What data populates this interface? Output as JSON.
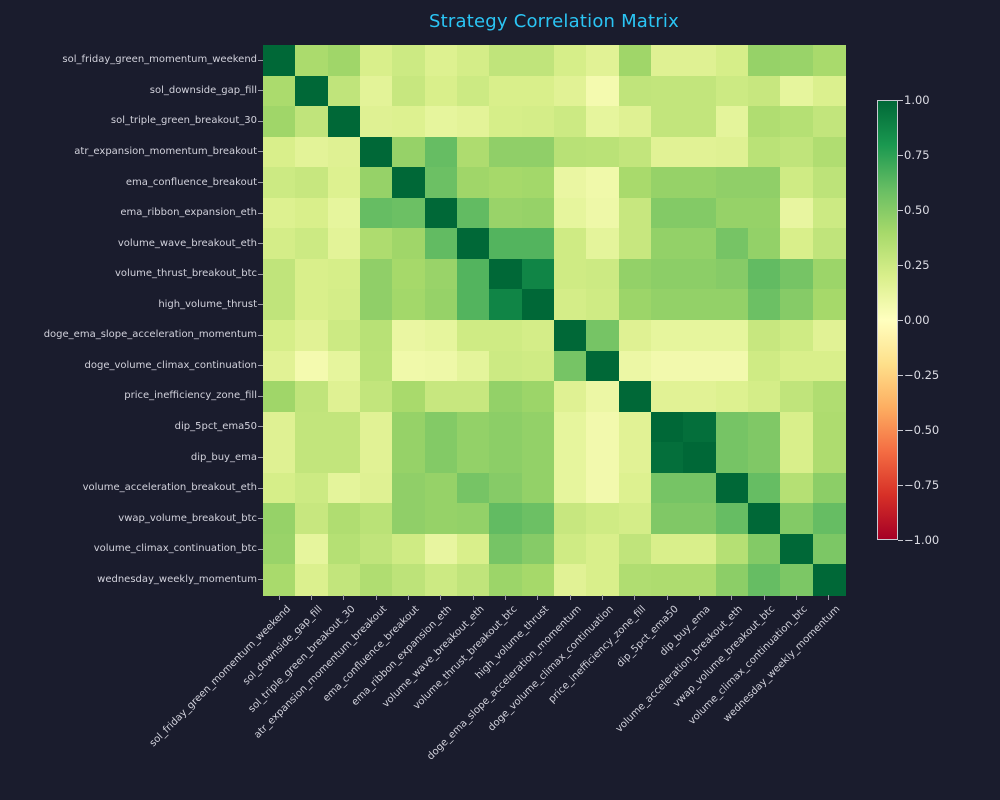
{
  "chart_data": {
    "type": "heatmap",
    "title": "Strategy Correlation Matrix",
    "labels": [
      "sol_friday_green_momentum_weekend",
      "sol_downside_gap_fill",
      "sol_triple_green_breakout_30",
      "atr_expansion_momentum_breakout",
      "ema_confluence_breakout",
      "ema_ribbon_expansion_eth",
      "volume_wave_breakout_eth",
      "volume_thrust_breakout_btc",
      "high_volume_thrust",
      "doge_ema_slope_acceleration_momentum",
      "doge_volume_climax_continuation",
      "price_inefficiency_zone_fill",
      "dip_5pct_ema50",
      "dip_buy_ema",
      "volume_acceleration_breakout_eth",
      "vwap_volume_breakout_btc",
      "volume_climax_continuation_btc",
      "wednesday_weekly_momentum"
    ],
    "matrix": [
      [
        1.0,
        0.38,
        0.42,
        0.2,
        0.25,
        0.18,
        0.22,
        0.3,
        0.3,
        0.21,
        0.16,
        0.42,
        0.17,
        0.17,
        0.21,
        0.45,
        0.44,
        0.39
      ],
      [
        0.38,
        1.0,
        0.3,
        0.15,
        0.27,
        0.2,
        0.25,
        0.2,
        0.2,
        0.16,
        0.06,
        0.3,
        0.29,
        0.29,
        0.25,
        0.27,
        0.13,
        0.19
      ],
      [
        0.42,
        0.3,
        1.0,
        0.17,
        0.18,
        0.13,
        0.15,
        0.21,
        0.22,
        0.25,
        0.13,
        0.17,
        0.29,
        0.29,
        0.14,
        0.36,
        0.34,
        0.29
      ],
      [
        0.2,
        0.15,
        0.17,
        1.0,
        0.45,
        0.6,
        0.37,
        0.47,
        0.47,
        0.33,
        0.32,
        0.29,
        0.16,
        0.16,
        0.17,
        0.32,
        0.3,
        0.36
      ],
      [
        0.25,
        0.27,
        0.18,
        0.45,
        1.0,
        0.58,
        0.42,
        0.4,
        0.41,
        0.11,
        0.08,
        0.39,
        0.45,
        0.45,
        0.47,
        0.47,
        0.24,
        0.31
      ],
      [
        0.18,
        0.2,
        0.13,
        0.6,
        0.58,
        1.0,
        0.61,
        0.44,
        0.45,
        0.13,
        0.09,
        0.27,
        0.51,
        0.51,
        0.45,
        0.45,
        0.12,
        0.25
      ],
      [
        0.22,
        0.25,
        0.15,
        0.37,
        0.42,
        0.61,
        1.0,
        0.65,
        0.65,
        0.24,
        0.14,
        0.27,
        0.46,
        0.46,
        0.55,
        0.46,
        0.2,
        0.3
      ],
      [
        0.3,
        0.2,
        0.21,
        0.47,
        0.4,
        0.44,
        0.65,
        1.0,
        0.88,
        0.24,
        0.25,
        0.46,
        0.48,
        0.48,
        0.5,
        0.61,
        0.55,
        0.43
      ],
      [
        0.3,
        0.2,
        0.22,
        0.47,
        0.41,
        0.45,
        0.65,
        0.88,
        1.0,
        0.22,
        0.24,
        0.43,
        0.46,
        0.46,
        0.46,
        0.58,
        0.5,
        0.4
      ],
      [
        0.21,
        0.16,
        0.25,
        0.33,
        0.11,
        0.13,
        0.24,
        0.24,
        0.22,
        1.0,
        0.55,
        0.17,
        0.13,
        0.13,
        0.13,
        0.27,
        0.24,
        0.16
      ],
      [
        0.16,
        0.06,
        0.13,
        0.32,
        0.08,
        0.09,
        0.14,
        0.25,
        0.24,
        0.55,
        1.0,
        0.1,
        0.07,
        0.07,
        0.07,
        0.24,
        0.2,
        0.2
      ],
      [
        0.42,
        0.3,
        0.17,
        0.29,
        0.39,
        0.27,
        0.27,
        0.46,
        0.43,
        0.17,
        0.1,
        1.0,
        0.16,
        0.16,
        0.18,
        0.22,
        0.3,
        0.36
      ],
      [
        0.17,
        0.29,
        0.29,
        0.16,
        0.45,
        0.51,
        0.46,
        0.48,
        0.46,
        0.13,
        0.07,
        0.16,
        1.0,
        0.97,
        0.55,
        0.52,
        0.2,
        0.37
      ],
      [
        0.17,
        0.29,
        0.29,
        0.16,
        0.45,
        0.51,
        0.46,
        0.48,
        0.46,
        0.13,
        0.07,
        0.16,
        0.97,
        1.0,
        0.55,
        0.52,
        0.2,
        0.37
      ],
      [
        0.21,
        0.25,
        0.14,
        0.17,
        0.47,
        0.45,
        0.55,
        0.5,
        0.46,
        0.13,
        0.07,
        0.18,
        0.55,
        0.55,
        1.0,
        0.6,
        0.34,
        0.48
      ],
      [
        0.45,
        0.27,
        0.36,
        0.32,
        0.47,
        0.45,
        0.46,
        0.61,
        0.58,
        0.27,
        0.24,
        0.22,
        0.52,
        0.52,
        0.6,
        1.0,
        0.51,
        0.6
      ],
      [
        0.44,
        0.13,
        0.34,
        0.3,
        0.24,
        0.12,
        0.2,
        0.55,
        0.5,
        0.24,
        0.2,
        0.3,
        0.2,
        0.2,
        0.34,
        0.51,
        1.0,
        0.53
      ],
      [
        0.39,
        0.19,
        0.29,
        0.36,
        0.31,
        0.25,
        0.3,
        0.43,
        0.4,
        0.16,
        0.2,
        0.36,
        0.37,
        0.37,
        0.48,
        0.6,
        0.53,
        1.0
      ]
    ],
    "vmin": -1,
    "vmax": 1,
    "grid": false,
    "legend_position": "colorbar-right",
    "colormap": "RdYlGn",
    "colormap_stops": [
      [
        -1.0,
        "#a50026"
      ],
      [
        -0.8,
        "#d73027"
      ],
      [
        -0.6,
        "#f46d43"
      ],
      [
        -0.4,
        "#fdae61"
      ],
      [
        -0.2,
        "#fee08b"
      ],
      [
        0.0,
        "#ffffbf"
      ],
      [
        0.2,
        "#d9ef8b"
      ],
      [
        0.4,
        "#a6d96a"
      ],
      [
        0.6,
        "#66bd63"
      ],
      [
        0.8,
        "#1a9850"
      ],
      [
        1.0,
        "#006837"
      ]
    ],
    "colorbar_ticks": [
      {
        "v": 1.0,
        "label": "1.00"
      },
      {
        "v": 0.75,
        "label": "0.75"
      },
      {
        "v": 0.5,
        "label": "0.50"
      },
      {
        "v": 0.25,
        "label": "0.25"
      },
      {
        "v": 0.0,
        "label": "0.00"
      },
      {
        "v": -0.25,
        "label": "−0.25"
      },
      {
        "v": -0.5,
        "label": "−0.50"
      },
      {
        "v": -0.75,
        "label": "−0.75"
      },
      {
        "v": -1.0,
        "label": "−1.00"
      }
    ],
    "style": {
      "background": "#1a1c2d",
      "title_color": "#2bc5f4",
      "tick_label_color": "#d2d2dc",
      "tick_mark_color": "#9a9aa6",
      "colorbar_outline": "#c9c9d2",
      "colorbar_label_color": "#dcdce4"
    }
  }
}
